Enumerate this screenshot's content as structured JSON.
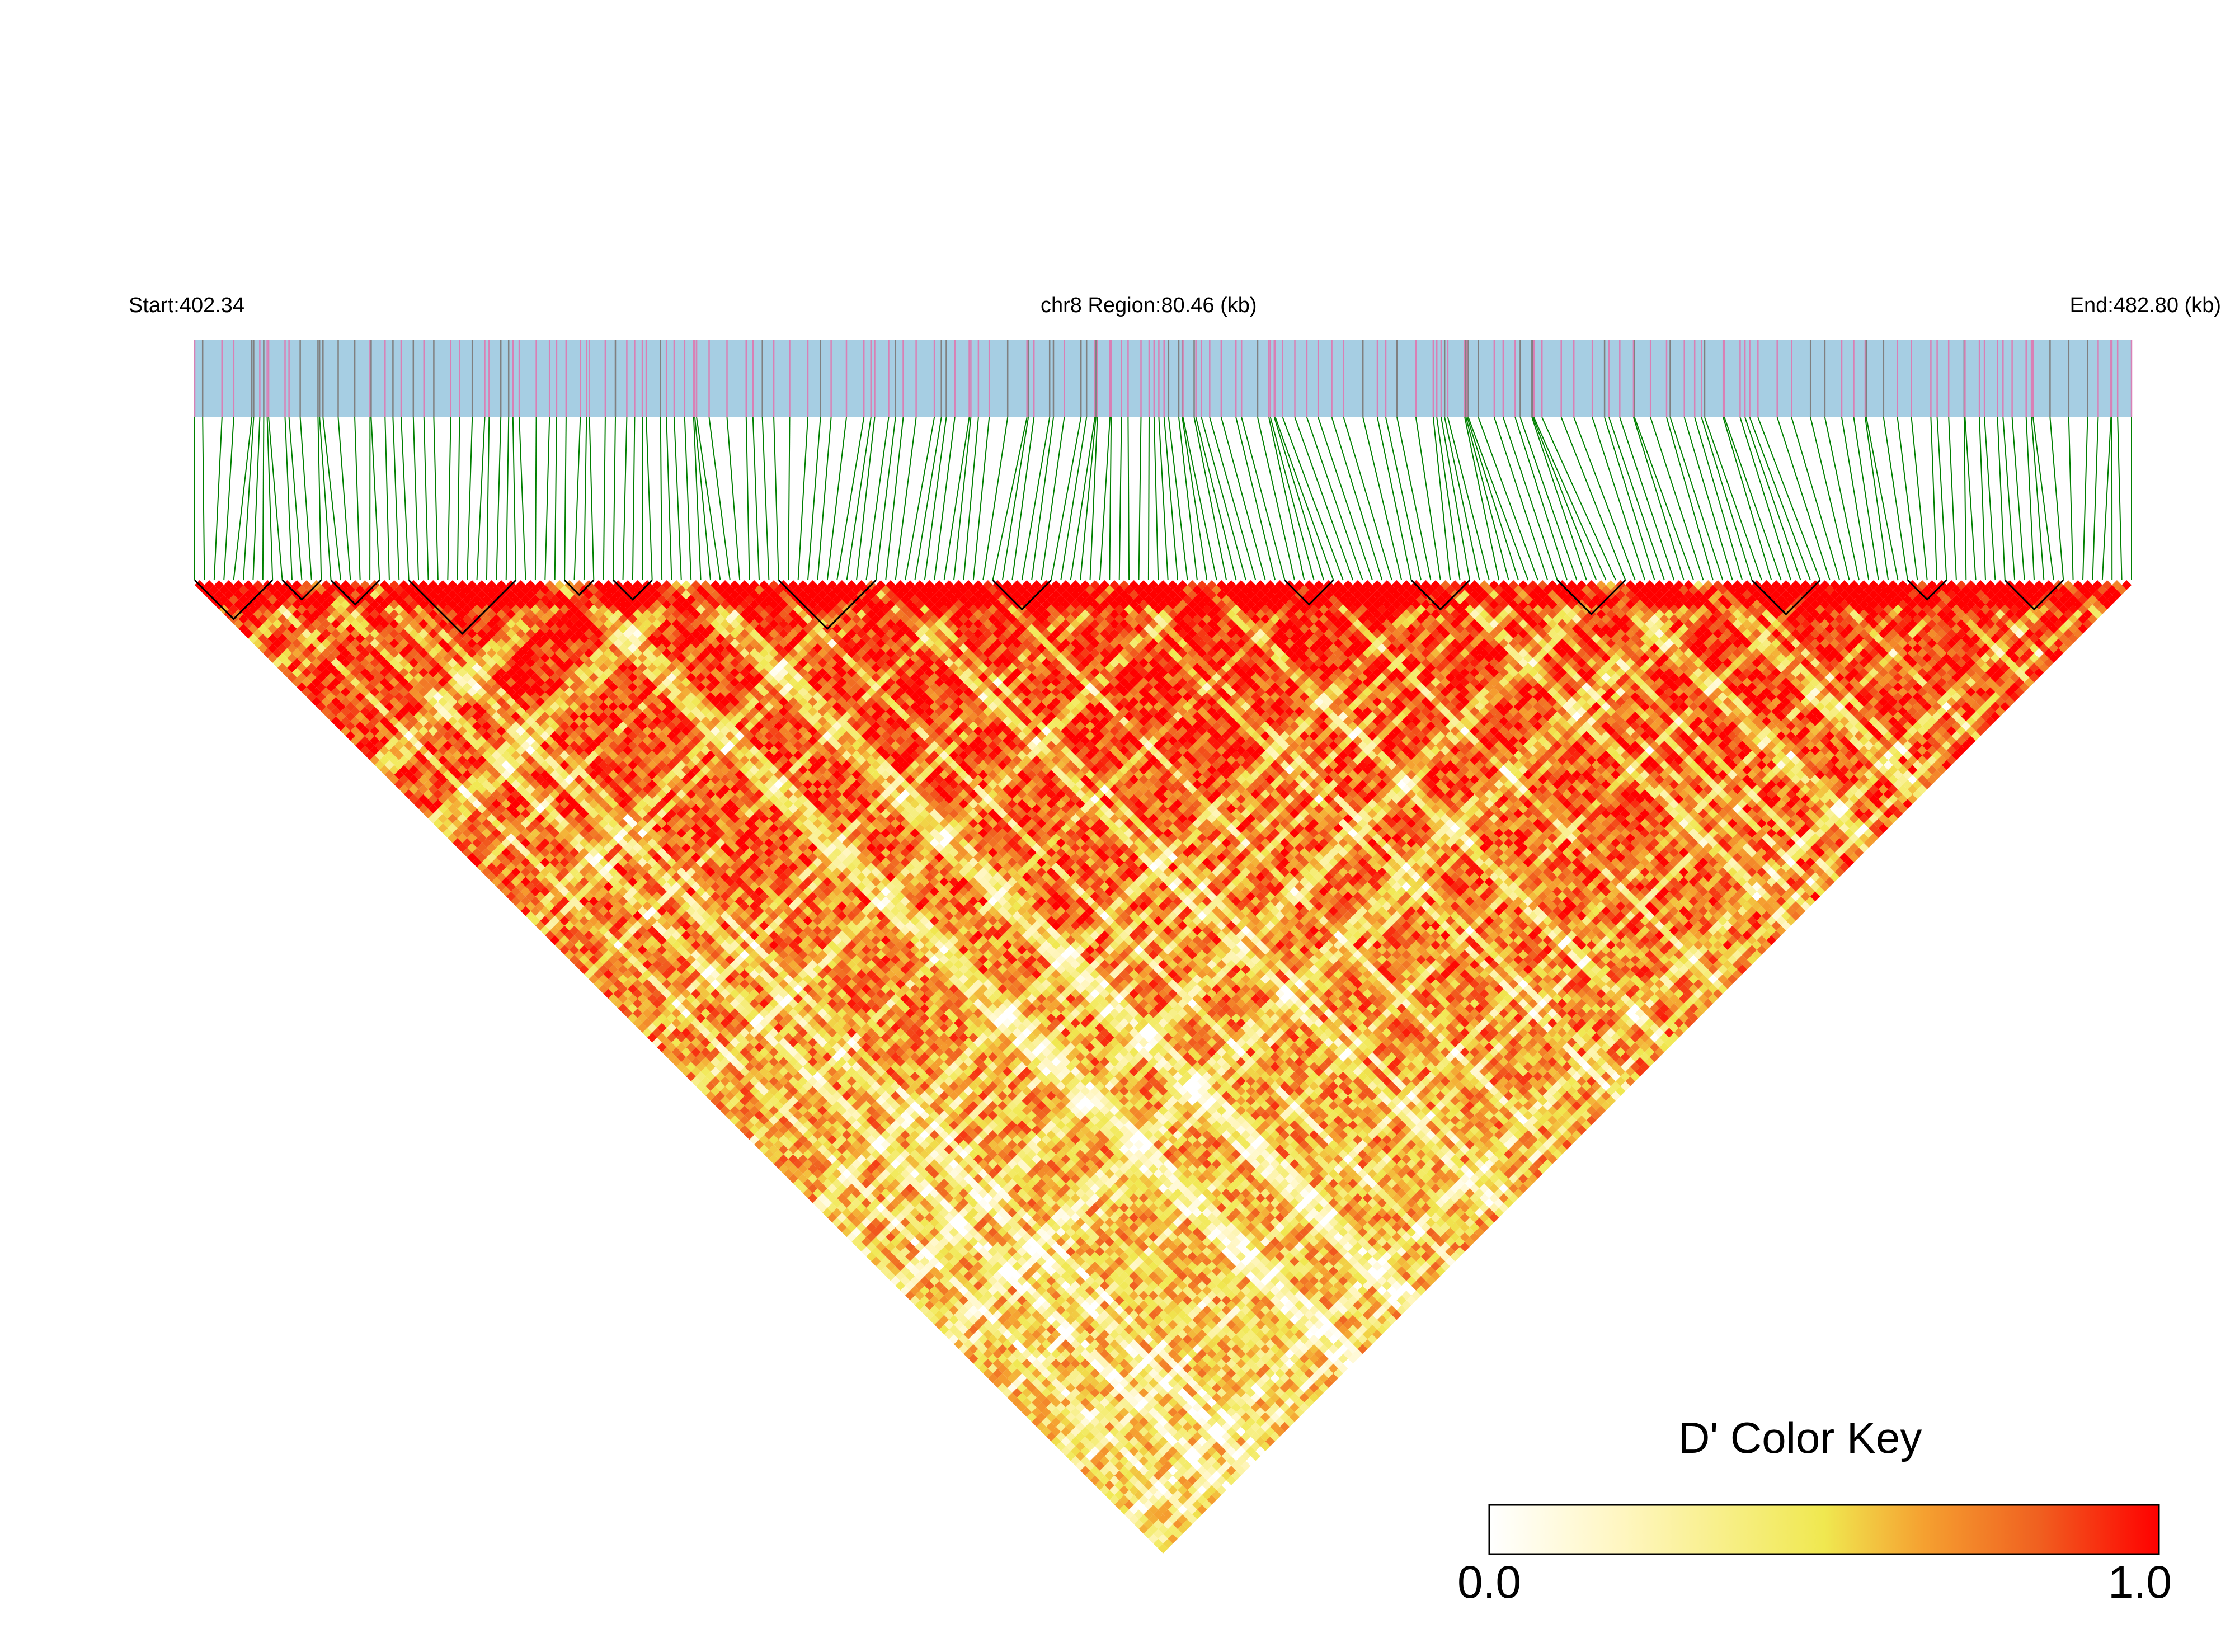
{
  "chart_data": {
    "type": "heatmap",
    "subtype": "LD triangle (D')",
    "chromosome": "chr8",
    "start_label": "Start:402.34",
    "end_label": "End:482.80 (kb)",
    "region_label": "chr8 Region:80.46 (kb)",
    "start_kb": 402.34,
    "end_kb": 482.8,
    "region_kb": 80.46,
    "n_snps": 200,
    "color_key": {
      "title": "D' Color Key",
      "min_label": "0.0",
      "max_label": "1.0",
      "min": 0.0,
      "max": 1.0,
      "stops": [
        "#ffffff",
        "#fff6c0",
        "#f0e850",
        "#f5a030",
        "#f06020",
        "#ff0000"
      ]
    },
    "colors": {
      "track_fill": "#a6cee3",
      "snp_tick_common": "#d980b5",
      "snp_tick_dense": "#808080",
      "connector": "#008000",
      "block_outline": "#000000"
    }
  }
}
